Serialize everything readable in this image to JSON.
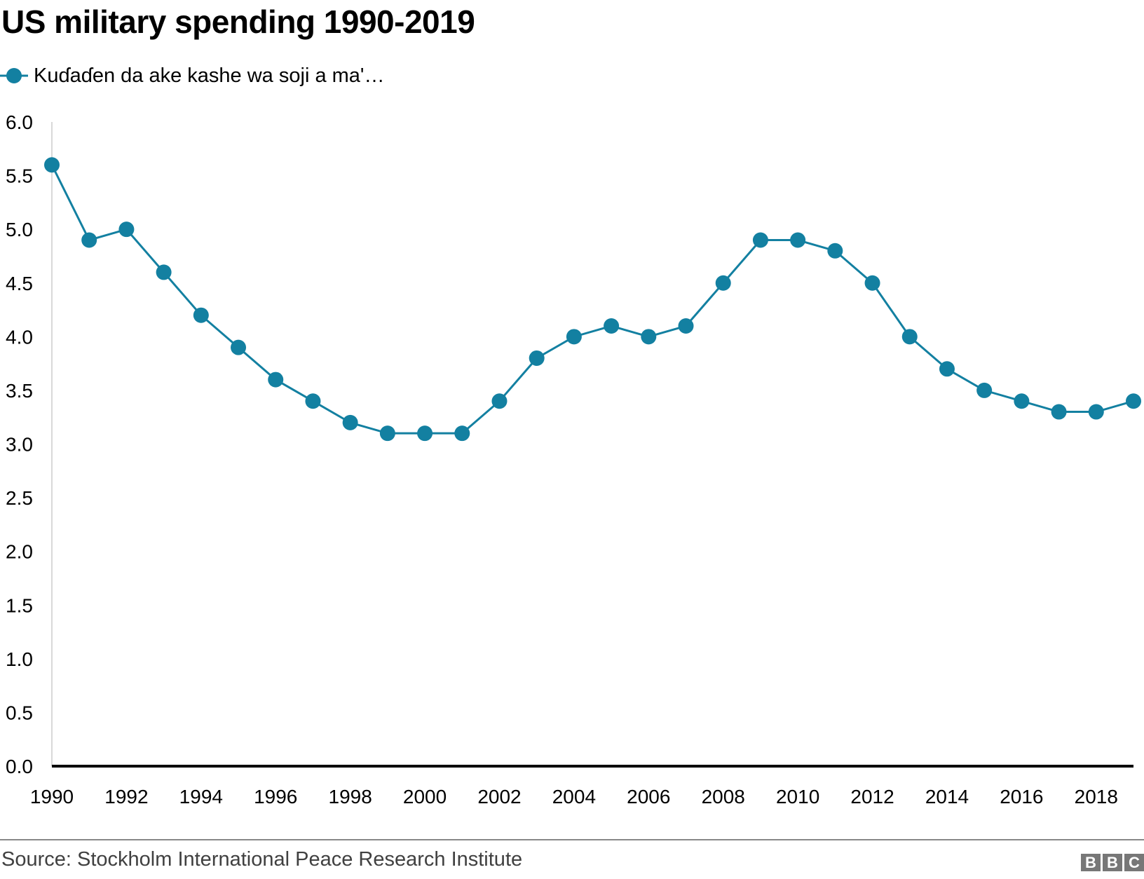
{
  "chart_data": {
    "type": "line",
    "title": "US military spending 1990-2019",
    "xlabel": "",
    "ylabel": "",
    "x": [
      1990,
      1991,
      1992,
      1993,
      1994,
      1995,
      1996,
      1997,
      1998,
      1999,
      2000,
      2001,
      2002,
      2003,
      2004,
      2005,
      2006,
      2007,
      2008,
      2009,
      2010,
      2011,
      2012,
      2013,
      2014,
      2015,
      2016,
      2017,
      2018,
      2019
    ],
    "series": [
      {
        "name": "Kuɗaɗen da ake kashe wa soji a ma'…",
        "color": "#1380a1",
        "values": [
          5.6,
          4.9,
          5.0,
          4.6,
          4.2,
          3.9,
          3.6,
          3.4,
          3.2,
          3.1,
          3.1,
          3.1,
          3.4,
          3.8,
          4.0,
          4.1,
          4.0,
          4.1,
          4.5,
          4.9,
          4.9,
          4.8,
          4.5,
          4.0,
          3.7,
          3.5,
          3.4,
          3.3,
          3.3,
          3.4
        ]
      }
    ],
    "ylim": [
      0,
      6
    ],
    "xlim": [
      1990,
      2019
    ],
    "y_ticks": [
      "0.0",
      "0.5",
      "1.0",
      "1.5",
      "2.0",
      "2.5",
      "3.0",
      "3.5",
      "4.0",
      "4.5",
      "5.0",
      "5.5",
      "6.0"
    ],
    "x_ticks": [
      "1990",
      "1992",
      "1994",
      "1996",
      "1998",
      "2000",
      "2002",
      "2004",
      "2006",
      "2008",
      "2010",
      "2012",
      "2014",
      "2016",
      "2018"
    ],
    "grid": false,
    "legend_placement": "top-left"
  },
  "source": "Source: Stockholm International Peace Research Institute",
  "logo": "BBC"
}
